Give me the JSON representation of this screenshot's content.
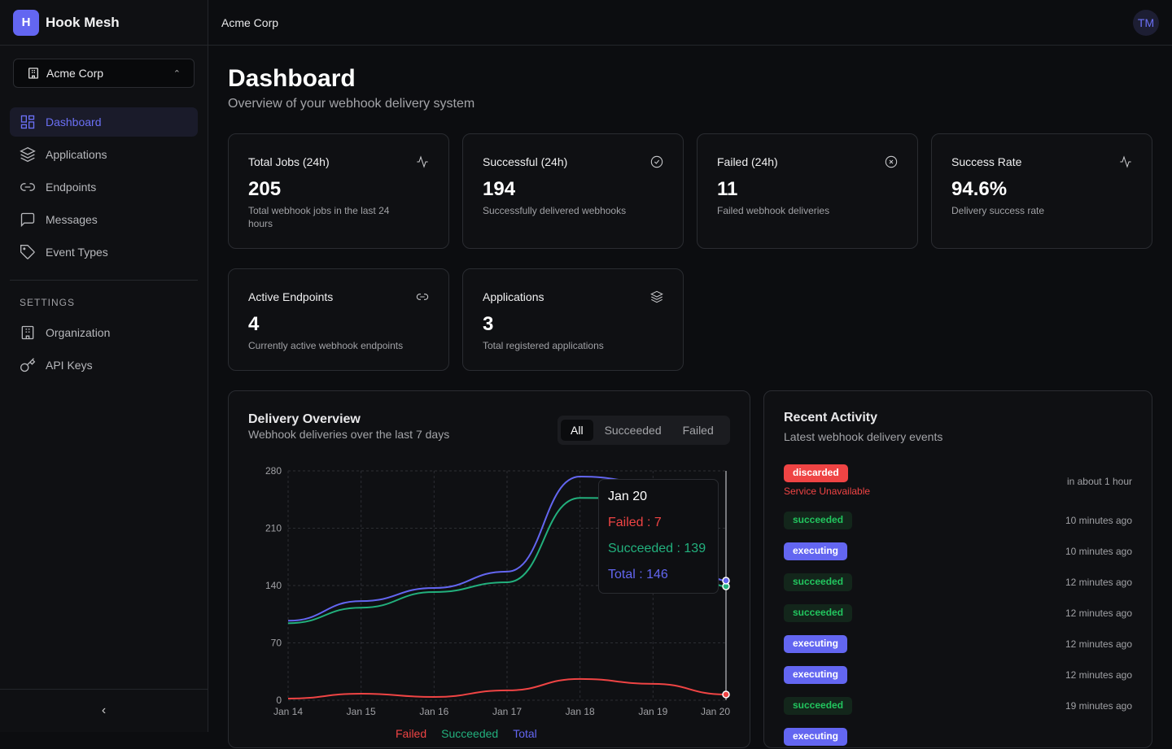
{
  "brand": {
    "logo_letter": "H",
    "name": "Hook Mesh"
  },
  "org_selector": {
    "value": "Acme Corp"
  },
  "nav": [
    {
      "label": "Dashboard",
      "icon": "dashboard-icon",
      "active": true
    },
    {
      "label": "Applications",
      "icon": "layers-icon"
    },
    {
      "label": "Endpoints",
      "icon": "link-icon"
    },
    {
      "label": "Messages",
      "icon": "message-icon"
    },
    {
      "label": "Event Types",
      "icon": "tag-icon"
    }
  ],
  "settings": {
    "heading": "SETTINGS",
    "items": [
      {
        "label": "Organization",
        "icon": "building-icon"
      },
      {
        "label": "API Keys",
        "icon": "key-icon"
      }
    ]
  },
  "topbar": {
    "org": "Acme Corp",
    "avatar": "TM"
  },
  "page": {
    "title": "Dashboard",
    "subtitle": "Overview of your webhook delivery system"
  },
  "stats": [
    {
      "label": "Total Jobs (24h)",
      "value": "205",
      "desc": "Total webhook jobs in the last 24 hours",
      "icon": "activity-icon"
    },
    {
      "label": "Successful (24h)",
      "value": "194",
      "desc": "Successfully delivered webhooks",
      "icon": "check-circle-icon"
    },
    {
      "label": "Failed (24h)",
      "value": "11",
      "desc": "Failed webhook deliveries",
      "icon": "x-circle-icon"
    },
    {
      "label": "Success Rate",
      "value": "94.6%",
      "desc": "Delivery success rate",
      "icon": "activity-icon"
    },
    {
      "label": "Active Endpoints",
      "value": "4",
      "desc": "Currently active webhook endpoints",
      "icon": "link-icon"
    },
    {
      "label": "Applications",
      "value": "3",
      "desc": "Total registered applications",
      "icon": "layers-icon"
    }
  ],
  "delivery": {
    "title": "Delivery Overview",
    "subtitle": "Webhook deliveries over the last 7 days",
    "filters": [
      "All",
      "Succeeded",
      "Failed"
    ],
    "active_filter": "All",
    "tooltip": {
      "date": "Jan 20",
      "failed": "Failed : 7",
      "succeeded": "Succeeded : 139",
      "total": "Total : 146"
    }
  },
  "chart_data": {
    "type": "line",
    "categories": [
      "Jan 14",
      "Jan 15",
      "Jan 16",
      "Jan 17",
      "Jan 18",
      "Jan 19",
      "Jan 20"
    ],
    "ylim": [
      0,
      280
    ],
    "yticks": [
      0,
      70,
      140,
      210,
      280
    ],
    "grid": true,
    "legend": "bottom",
    "series": [
      {
        "name": "Failed",
        "color": "#ef4444",
        "values": [
          2,
          8,
          4,
          12,
          26,
          20,
          7
        ]
      },
      {
        "name": "Succeeded",
        "color": "#22b07d",
        "values": [
          94,
          113,
          132,
          144,
          247,
          246,
          139
        ]
      },
      {
        "name": "Total",
        "color": "#6366f1",
        "values": [
          97,
          121,
          137,
          157,
          273,
          266,
          146
        ]
      }
    ]
  },
  "activity": {
    "title": "Recent Activity",
    "subtitle": "Latest webhook delivery events",
    "items": [
      {
        "status": "discarded",
        "error": "Service Unavailable",
        "time": "in about 1 hour"
      },
      {
        "status": "succeeded",
        "time": "10 minutes ago"
      },
      {
        "status": "executing",
        "time": "10 minutes ago"
      },
      {
        "status": "succeeded",
        "time": "12 minutes ago"
      },
      {
        "status": "succeeded",
        "time": "12 minutes ago"
      },
      {
        "status": "executing",
        "time": "12 minutes ago"
      },
      {
        "status": "executing",
        "time": "12 minutes ago"
      },
      {
        "status": "succeeded",
        "time": "19 minutes ago"
      },
      {
        "status": "executing",
        "time": ""
      }
    ]
  }
}
